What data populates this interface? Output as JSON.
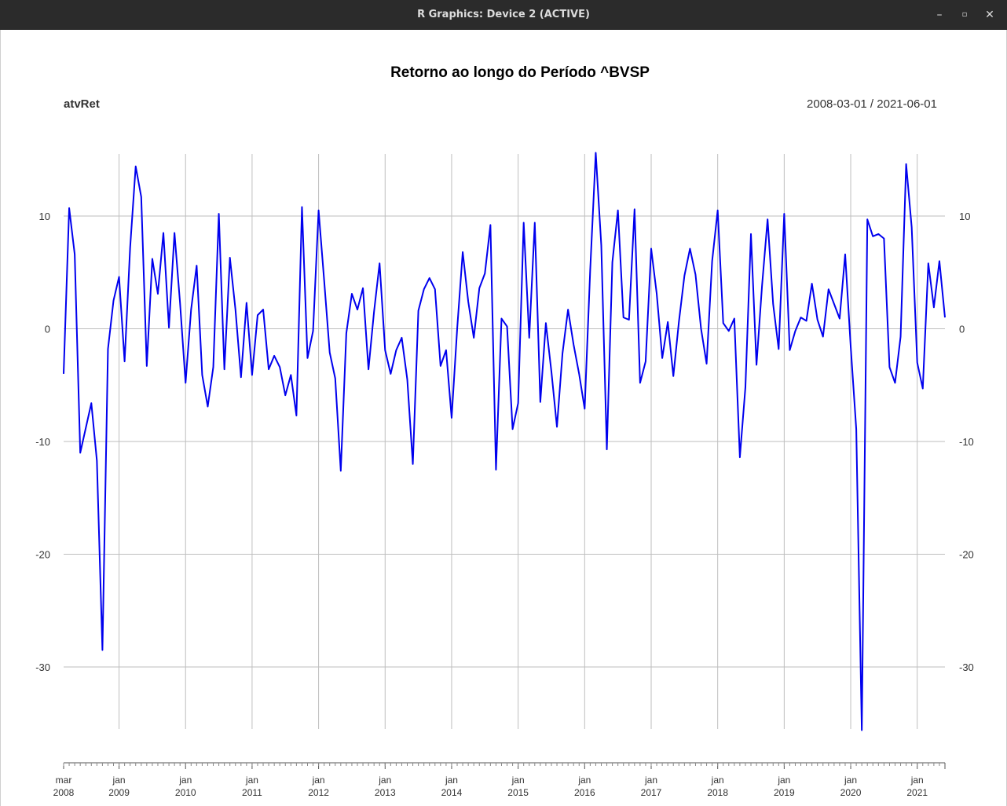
{
  "window": {
    "title": "R Graphics: Device 2 (ACTIVE)",
    "buttons": {
      "minimize": "–",
      "maximize": "▫",
      "close": "✕"
    }
  },
  "colors": {
    "line": "#0000ee",
    "grid": "#bebebe",
    "titlebar": "#2b2b2b"
  },
  "chart_data": {
    "type": "line",
    "title": "Retorno ao longo do Período ^BVSP",
    "series_label": "atvRet",
    "date_range": "2008-03-01 / 2021-06-01",
    "ylim": [
      -35.5,
      15.5
    ],
    "yticks": [
      10,
      0,
      -10,
      -20,
      -30
    ],
    "y_axis_both_sides": true,
    "grid": true,
    "x_start": "2008-03",
    "x_end": "2021-06",
    "xticks": [
      {
        "month": "2008-03",
        "label1": "mar",
        "label2": "2008"
      },
      {
        "month": "2009-01",
        "label1": "jan",
        "label2": "2009"
      },
      {
        "month": "2010-01",
        "label1": "jan",
        "label2": "2010"
      },
      {
        "month": "2011-01",
        "label1": "jan",
        "label2": "2011"
      },
      {
        "month": "2012-01",
        "label1": "jan",
        "label2": "2012"
      },
      {
        "month": "2013-01",
        "label1": "jan",
        "label2": "2013"
      },
      {
        "month": "2014-01",
        "label1": "jan",
        "label2": "2014"
      },
      {
        "month": "2015-01",
        "label1": "jan",
        "label2": "2015"
      },
      {
        "month": "2016-01",
        "label1": "jan",
        "label2": "2016"
      },
      {
        "month": "2017-01",
        "label1": "jan",
        "label2": "2017"
      },
      {
        "month": "2018-01",
        "label1": "jan",
        "label2": "2018"
      },
      {
        "month": "2019-01",
        "label1": "jan",
        "label2": "2019"
      },
      {
        "month": "2020-01",
        "label1": "jan",
        "label2": "2020"
      },
      {
        "month": "2021-01",
        "label1": "jan",
        "label2": "2021"
      }
    ],
    "series": [
      {
        "values": [
          -4.0,
          10.7,
          6.6,
          -11.0,
          -8.8,
          -6.6,
          -11.7,
          -28.5,
          -1.8,
          2.5,
          4.6,
          -2.9,
          7.2,
          14.4,
          11.7,
          -3.3,
          6.2,
          3.1,
          8.5,
          0.1,
          8.5,
          2.3,
          -4.8,
          1.7,
          5.6,
          -4.1,
          -6.9,
          -3.4,
          10.2,
          -3.6,
          6.3,
          1.7,
          -4.3,
          2.3,
          -4.1,
          1.2,
          1.7,
          -3.6,
          -2.4,
          -3.4,
          -5.9,
          -4.1,
          -7.7,
          10.8,
          -2.6,
          -0.2,
          10.5,
          4.3,
          -2.1,
          -4.4,
          -12.6,
          -0.4,
          3.1,
          1.7,
          3.6,
          -3.6,
          1.5,
          5.8,
          -1.9,
          -4.0,
          -1.9,
          -0.8,
          -4.5,
          -12.0,
          1.6,
          3.5,
          4.5,
          3.5,
          -3.3,
          -1.9,
          -7.9,
          0.0,
          6.8,
          2.4,
          -0.8,
          3.6,
          4.9,
          9.2,
          -12.5,
          0.9,
          0.2,
          -8.9,
          -6.6,
          9.4,
          -0.8,
          9.4,
          -6.5,
          0.5,
          -3.8,
          -8.7,
          -2.2,
          1.7,
          -1.4,
          -4.0,
          -7.1,
          5.2,
          15.6,
          7.4,
          -10.7,
          5.9,
          10.5,
          1.0,
          0.8,
          10.6,
          -4.8,
          -2.9,
          7.1,
          3.1,
          -2.6,
          0.6,
          -4.2,
          0.6,
          4.7,
          7.1,
          4.8,
          0.0,
          -3.1,
          6.0,
          10.5,
          0.5,
          -0.2,
          0.9,
          -11.4,
          -5.2,
          8.4,
          -3.2,
          3.8,
          9.7,
          2.2,
          -1.8,
          10.2,
          -1.9,
          -0.2,
          1.0,
          0.7,
          4.0,
          0.8,
          -0.7,
          3.5,
          2.2,
          0.9,
          6.6,
          -1.6,
          -8.9,
          -35.6,
          9.7,
          8.2,
          8.4,
          8.0,
          -3.4,
          -4.8,
          -0.7,
          14.6,
          9.0,
          -3.0,
          -5.3,
          5.8,
          1.9,
          6.0,
          1.0
        ]
      }
    ]
  }
}
